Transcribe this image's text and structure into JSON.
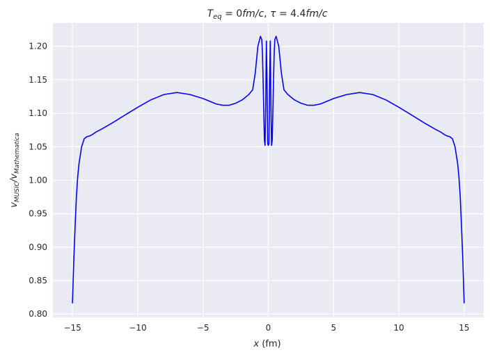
{
  "chart_data": {
    "type": "line",
    "title_parts": {
      "a": "T",
      "a_sub": "eq",
      "b": " = 0",
      "b_it": "fm/c",
      "c": ", ",
      "tau": "τ",
      "d": " = 4.4",
      "d_it": "fm/c"
    },
    "xlabel_var": "x",
    "xlabel_unit": " (fm)",
    "ylabel_parts": {
      "v1": "v",
      "s1": "MUSIC",
      "slash": "/",
      "v2": "v",
      "s2": "Mathematica"
    },
    "xlim": [
      -16.5,
      16.5
    ],
    "ylim": [
      0.795,
      1.235
    ],
    "xticks": [
      -15,
      -10,
      -5,
      0,
      5,
      10,
      15
    ],
    "xtick_labels": [
      "−15",
      "−10",
      "−5",
      "0",
      "5",
      "10",
      "15"
    ],
    "yticks": [
      0.8,
      0.85,
      0.9,
      0.95,
      1.0,
      1.05,
      1.1,
      1.15,
      1.2
    ],
    "ytick_labels": [
      "0.80",
      "0.85",
      "0.90",
      "0.95",
      "1.00",
      "1.05",
      "1.10",
      "1.15",
      "1.20"
    ],
    "grid": true,
    "line_color": "#0000ff",
    "background_color": "#eaeaf2",
    "grid_color": "#ffffff",
    "series": [
      {
        "x": [
          -15.0,
          -14.9,
          -14.8,
          -14.7,
          -14.6,
          -14.5,
          -14.3,
          -14.1,
          -13.9,
          -13.7,
          -13.5,
          -13.2,
          -12.8,
          -12.0,
          -11.0,
          -10.0,
          -9.0,
          -8.0,
          -7.0,
          -6.0,
          -5.0,
          -4.0,
          -3.5,
          -3.0,
          -2.5,
          -2.0,
          -1.5,
          -1.2,
          -1.0,
          -0.8,
          -0.6,
          -0.5,
          -0.45,
          -0.4,
          -0.3,
          -0.25,
          -0.2,
          -0.15,
          -0.1,
          -0.05,
          0.0,
          0.05,
          0.1,
          0.15,
          0.2,
          0.25,
          0.3,
          0.4,
          0.45,
          0.5,
          0.6,
          0.8,
          1.0,
          1.2,
          1.5,
          2.0,
          2.5,
          3.0,
          3.5,
          4.0,
          5.0,
          6.0,
          7.0,
          8.0,
          9.0,
          10.0,
          11.0,
          12.0,
          12.8,
          13.2,
          13.5,
          13.7,
          13.9,
          14.1,
          14.3,
          14.5,
          14.6,
          14.7,
          14.8,
          14.9,
          15.0
        ],
        "y": [
          0.816,
          0.88,
          0.93,
          0.975,
          1.005,
          1.025,
          1.05,
          1.062,
          1.065,
          1.066,
          1.068,
          1.072,
          1.076,
          1.085,
          1.097,
          1.109,
          1.12,
          1.128,
          1.131,
          1.128,
          1.122,
          1.114,
          1.112,
          1.112,
          1.115,
          1.12,
          1.128,
          1.135,
          1.16,
          1.2,
          1.215,
          1.21,
          1.19,
          1.15,
          1.06,
          1.052,
          1.11,
          1.208,
          1.15,
          1.055,
          1.052,
          1.055,
          1.15,
          1.208,
          1.11,
          1.052,
          1.06,
          1.15,
          1.19,
          1.21,
          1.215,
          1.2,
          1.16,
          1.135,
          1.128,
          1.12,
          1.115,
          1.112,
          1.112,
          1.114,
          1.122,
          1.128,
          1.131,
          1.128,
          1.12,
          1.109,
          1.097,
          1.085,
          1.076,
          1.072,
          1.068,
          1.066,
          1.065,
          1.062,
          1.05,
          1.025,
          1.005,
          0.975,
          0.93,
          0.88,
          0.816
        ]
      }
    ]
  }
}
